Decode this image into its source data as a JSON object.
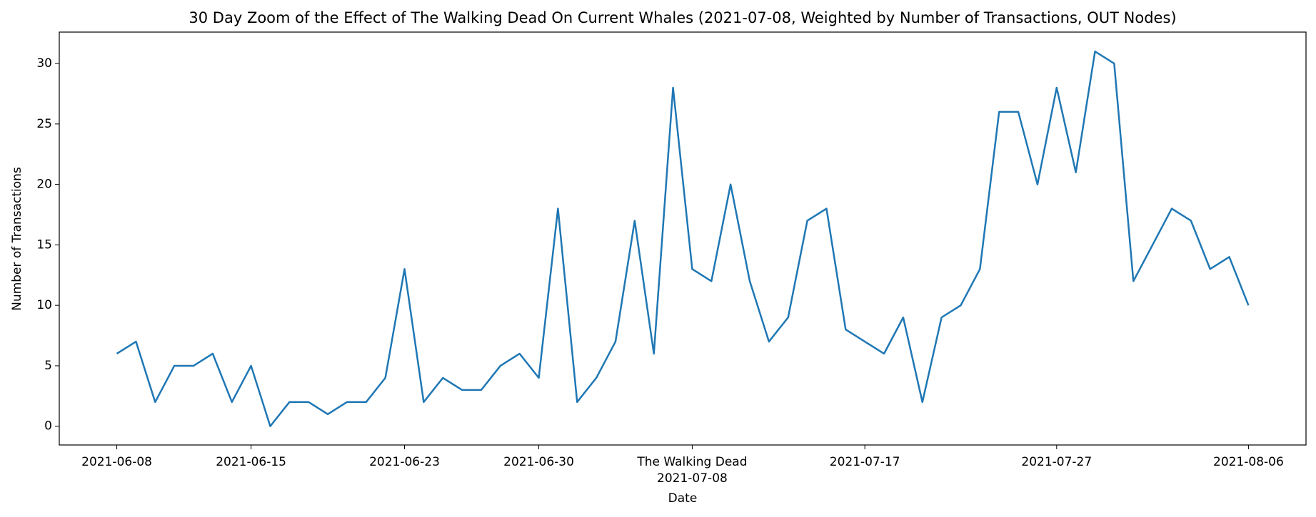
{
  "chart_data": {
    "type": "line",
    "title": "30 Day Zoom of the Effect of The Walking Dead On Current Whales (2021-07-08, Weighted by Number of Transactions, OUT Nodes)",
    "x_label": "Date",
    "y_label": "Number of Transactions",
    "x": [
      "2021-06-08",
      "2021-06-09",
      "2021-06-10",
      "2021-06-11",
      "2021-06-12",
      "2021-06-13",
      "2021-06-14",
      "2021-06-15",
      "2021-06-16",
      "2021-06-17",
      "2021-06-18",
      "2021-06-19",
      "2021-06-20",
      "2021-06-21",
      "2021-06-22",
      "2021-06-23",
      "2021-06-24",
      "2021-06-25",
      "2021-06-26",
      "2021-06-27",
      "2021-06-28",
      "2021-06-29",
      "2021-06-30",
      "2021-07-01",
      "2021-07-02",
      "2021-07-03",
      "2021-07-04",
      "2021-07-05",
      "2021-07-06",
      "2021-07-07",
      "2021-07-08",
      "2021-07-09",
      "2021-07-10",
      "2021-07-11",
      "2021-07-12",
      "2021-07-13",
      "2021-07-14",
      "2021-07-15",
      "2021-07-16",
      "2021-07-17",
      "2021-07-18",
      "2021-07-19",
      "2021-07-20",
      "2021-07-21",
      "2021-07-22",
      "2021-07-23",
      "2021-07-24",
      "2021-07-25",
      "2021-07-26",
      "2021-07-27",
      "2021-07-28",
      "2021-07-29",
      "2021-07-30",
      "2021-07-31",
      "2021-08-01",
      "2021-08-02",
      "2021-08-03",
      "2021-08-04",
      "2021-08-05",
      "2021-08-06"
    ],
    "series": [
      {
        "color": "#1f77b4",
        "values": [
          6,
          7,
          2,
          5,
          5,
          6,
          2,
          5,
          0,
          2,
          2,
          1,
          2,
          2,
          4,
          13,
          2,
          4,
          3,
          3,
          5,
          6,
          4,
          18,
          2,
          4,
          7,
          17,
          6,
          28,
          13,
          12,
          20,
          12,
          7,
          9,
          17,
          18,
          8,
          7,
          6,
          9,
          2,
          9,
          10,
          13,
          26,
          26,
          20,
          28,
          21,
          31,
          30,
          12,
          15,
          18,
          17,
          13,
          14,
          10
        ]
      }
    ],
    "xlim": [
      "2021-06-05",
      "2021-08-09"
    ],
    "xticks": [
      "2021-06-08",
      "2021-06-15",
      "2021-06-23",
      "2021-06-30",
      "2021-07-08",
      "2021-07-17",
      "2021-07-27",
      "2021-08-06"
    ],
    "annotation": {
      "x": "2021-07-08",
      "text": "The Walking Dead"
    },
    "ylim": [
      -1.55,
      32.6
    ],
    "yticks": [
      0,
      5,
      10,
      15,
      20,
      25,
      30
    ],
    "grid": false
  }
}
